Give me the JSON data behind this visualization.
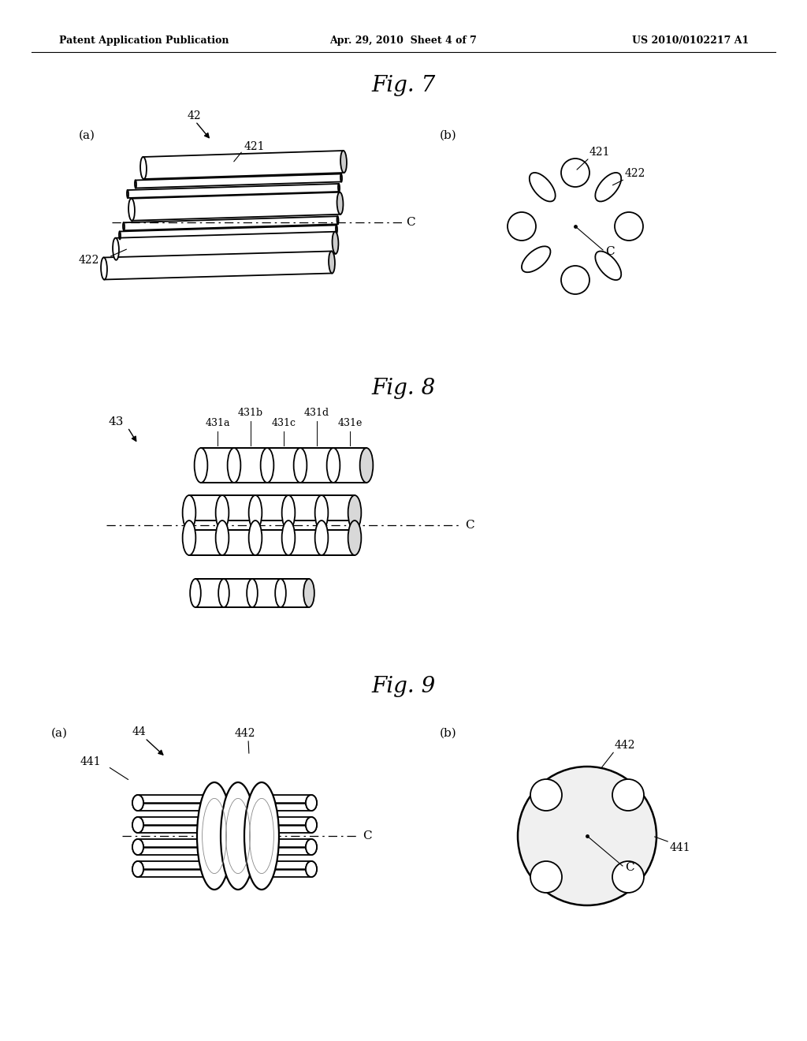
{
  "bg_color": "#ffffff",
  "header_left": "Patent Application Publication",
  "header_center": "Apr. 29, 2010  Sheet 4 of 7",
  "header_right": "US 2010/0102217 A1",
  "fig7_title": "Fig. 7",
  "fig8_title": "Fig. 8",
  "fig9_title": "Fig. 9",
  "lw": 1.3
}
